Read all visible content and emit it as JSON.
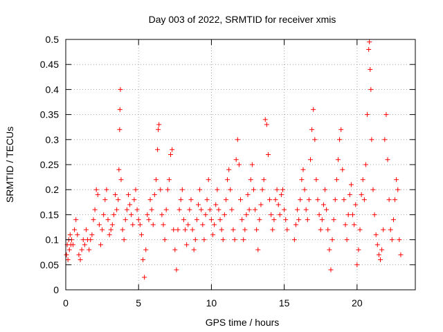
{
  "chart_data": {
    "type": "scatter",
    "title": "Day 003 of 2022, SRMTID for receiver xmis",
    "xlabel": "GPS time / hours",
    "ylabel": "SRMTID / TECUs",
    "xlim": [
      0,
      24
    ],
    "ylim": [
      0,
      0.5
    ],
    "x_ticks": [
      0,
      5,
      10,
      15,
      20
    ],
    "x_tick_labels": [
      "0",
      "5",
      "10",
      "15",
      "20"
    ],
    "y_ticks": [
      0,
      0.05,
      0.1,
      0.15,
      0.2,
      0.25,
      0.3,
      0.35,
      0.4,
      0.45,
      0.5
    ],
    "y_tick_labels": [
      "0",
      "0.05",
      "0.1",
      "0.15",
      "0.2",
      "0.25",
      "0.3",
      "0.35",
      "0.4",
      "0.45",
      "0.5"
    ],
    "grid": true,
    "marker": "+",
    "color": "#ff0000",
    "series": [
      {
        "name": "SRMTID",
        "points": [
          [
            0.05,
            0.07
          ],
          [
            0.1,
            0.09
          ],
          [
            0.15,
            0.06
          ],
          [
            0.2,
            0.1
          ],
          [
            0.25,
            0.08
          ],
          [
            0.3,
            0.11
          ],
          [
            0.35,
            0.09
          ],
          [
            0.4,
            0.1
          ],
          [
            0.5,
            0.09
          ],
          [
            0.6,
            0.12
          ],
          [
            0.7,
            0.14
          ],
          [
            0.8,
            0.11
          ],
          [
            0.9,
            0.07
          ],
          [
            1.0,
            0.06
          ],
          [
            1.1,
            0.08
          ],
          [
            1.2,
            0.1
          ],
          [
            1.3,
            0.09
          ],
          [
            1.4,
            0.12
          ],
          [
            1.5,
            0.1
          ],
          [
            1.6,
            0.08
          ],
          [
            1.7,
            0.1
          ],
          [
            1.8,
            0.11
          ],
          [
            1.9,
            0.14
          ],
          [
            2.0,
            0.16
          ],
          [
            2.1,
            0.2
          ],
          [
            2.2,
            0.19
          ],
          [
            2.3,
            0.13
          ],
          [
            2.4,
            0.09
          ],
          [
            2.5,
            0.12
          ],
          [
            2.6,
            0.15
          ],
          [
            2.7,
            0.18
          ],
          [
            2.8,
            0.2
          ],
          [
            2.9,
            0.14
          ],
          [
            3.0,
            0.11
          ],
          [
            3.1,
            0.12
          ],
          [
            3.2,
            0.13
          ],
          [
            3.3,
            0.15
          ],
          [
            3.4,
            0.19
          ],
          [
            3.5,
            0.16
          ],
          [
            3.6,
            0.18
          ],
          [
            3.65,
            0.24
          ],
          [
            3.7,
            0.32
          ],
          [
            3.72,
            0.36
          ],
          [
            3.75,
            0.4
          ],
          [
            3.8,
            0.22
          ],
          [
            3.9,
            0.12
          ],
          [
            4.0,
            0.1
          ],
          [
            4.1,
            0.14
          ],
          [
            4.2,
            0.16
          ],
          [
            4.3,
            0.19
          ],
          [
            4.4,
            0.17
          ],
          [
            4.5,
            0.15
          ],
          [
            4.6,
            0.13
          ],
          [
            4.7,
            0.18
          ],
          [
            4.8,
            0.2
          ],
          [
            4.9,
            0.16
          ],
          [
            5.0,
            0.14
          ],
          [
            5.1,
            0.13
          ],
          [
            5.2,
            0.11
          ],
          [
            5.3,
            0.06
          ],
          [
            5.4,
            0.025
          ],
          [
            5.5,
            0.08
          ],
          [
            5.6,
            0.15
          ],
          [
            5.7,
            0.14
          ],
          [
            5.8,
            0.18
          ],
          [
            5.9,
            0.16
          ],
          [
            6.0,
            0.13
          ],
          [
            6.1,
            0.19
          ],
          [
            6.2,
            0.22
          ],
          [
            6.3,
            0.28
          ],
          [
            6.35,
            0.32
          ],
          [
            6.4,
            0.33
          ],
          [
            6.5,
            0.2
          ],
          [
            6.6,
            0.15
          ],
          [
            6.7,
            0.13
          ],
          [
            6.8,
            0.1
          ],
          [
            6.9,
            0.16
          ],
          [
            7.0,
            0.2
          ],
          [
            7.1,
            0.22
          ],
          [
            7.2,
            0.27
          ],
          [
            7.3,
            0.28
          ],
          [
            7.4,
            0.12
          ],
          [
            7.5,
            0.08
          ],
          [
            7.6,
            0.04
          ],
          [
            7.7,
            0.12
          ],
          [
            7.8,
            0.16
          ],
          [
            7.9,
            0.18
          ],
          [
            8.0,
            0.2
          ],
          [
            8.1,
            0.14
          ],
          [
            8.2,
            0.12
          ],
          [
            8.3,
            0.09
          ],
          [
            8.4,
            0.13
          ],
          [
            8.5,
            0.16
          ],
          [
            8.6,
            0.18
          ],
          [
            8.7,
            0.12
          ],
          [
            8.8,
            0.08
          ],
          [
            8.9,
            0.1
          ],
          [
            9.0,
            0.14
          ],
          [
            9.1,
            0.17
          ],
          [
            9.2,
            0.2
          ],
          [
            9.3,
            0.16
          ],
          [
            9.4,
            0.13
          ],
          [
            9.5,
            0.1
          ],
          [
            9.6,
            0.15
          ],
          [
            9.7,
            0.18
          ],
          [
            9.8,
            0.22
          ],
          [
            9.9,
            0.16
          ],
          [
            10.0,
            0.14
          ],
          [
            10.1,
            0.11
          ],
          [
            10.2,
            0.13
          ],
          [
            10.3,
            0.17
          ],
          [
            10.4,
            0.2
          ],
          [
            10.5,
            0.16
          ],
          [
            10.6,
            0.14
          ],
          [
            10.7,
            0.12
          ],
          [
            10.8,
            0.1
          ],
          [
            10.9,
            0.15
          ],
          [
            11.0,
            0.18
          ],
          [
            11.1,
            0.22
          ],
          [
            11.2,
            0.24
          ],
          [
            11.3,
            0.2
          ],
          [
            11.4,
            0.16
          ],
          [
            11.5,
            0.12
          ],
          [
            11.6,
            0.1
          ],
          [
            11.7,
            0.26
          ],
          [
            11.8,
            0.3
          ],
          [
            11.9,
            0.25
          ],
          [
            12.0,
            0.18
          ],
          [
            12.1,
            0.14
          ],
          [
            12.2,
            0.1
          ],
          [
            12.3,
            0.12
          ],
          [
            12.4,
            0.15
          ],
          [
            12.5,
            0.19
          ],
          [
            12.6,
            0.16
          ],
          [
            12.7,
            0.22
          ],
          [
            12.8,
            0.25
          ],
          [
            12.9,
            0.2
          ],
          [
            13.0,
            0.16
          ],
          [
            13.1,
            0.12
          ],
          [
            13.2,
            0.08
          ],
          [
            13.3,
            0.14
          ],
          [
            13.4,
            0.17
          ],
          [
            13.5,
            0.2
          ],
          [
            13.6,
            0.22
          ],
          [
            13.7,
            0.34
          ],
          [
            13.8,
            0.33
          ],
          [
            13.9,
            0.27
          ],
          [
            14.0,
            0.18
          ],
          [
            14.1,
            0.15
          ],
          [
            14.2,
            0.12
          ],
          [
            14.3,
            0.14
          ],
          [
            14.4,
            0.18
          ],
          [
            14.5,
            0.2
          ],
          [
            14.6,
            0.17
          ],
          [
            14.7,
            0.15
          ],
          [
            14.8,
            0.19
          ],
          [
            14.9,
            0.2
          ],
          [
            15.0,
            0.16
          ],
          [
            15.1,
            0.14
          ],
          [
            15.2,
            0.12
          ],
          [
            15.7,
            0.1
          ],
          [
            15.8,
            0.13
          ],
          [
            15.9,
            0.16
          ],
          [
            16.0,
            0.14
          ],
          [
            16.1,
            0.18
          ],
          [
            16.2,
            0.22
          ],
          [
            16.3,
            0.24
          ],
          [
            16.4,
            0.2
          ],
          [
            16.5,
            0.16
          ],
          [
            16.6,
            0.14
          ],
          [
            16.7,
            0.18
          ],
          [
            16.8,
            0.26
          ],
          [
            16.9,
            0.32
          ],
          [
            17.0,
            0.36
          ],
          [
            17.1,
            0.3
          ],
          [
            17.2,
            0.22
          ],
          [
            17.3,
            0.18
          ],
          [
            17.4,
            0.15
          ],
          [
            17.5,
            0.12
          ],
          [
            17.6,
            0.14
          ],
          [
            17.7,
            0.17
          ],
          [
            17.8,
            0.2
          ],
          [
            17.9,
            0.16
          ],
          [
            18.0,
            0.12
          ],
          [
            18.1,
            0.08
          ],
          [
            18.2,
            0.04
          ],
          [
            18.3,
            0.1
          ],
          [
            18.4,
            0.14
          ],
          [
            18.5,
            0.18
          ],
          [
            18.6,
            0.22
          ],
          [
            18.7,
            0.26
          ],
          [
            18.8,
            0.3
          ],
          [
            18.9,
            0.32
          ],
          [
            19.0,
            0.24
          ],
          [
            19.1,
            0.18
          ],
          [
            19.2,
            0.13
          ],
          [
            19.3,
            0.1
          ],
          [
            19.4,
            0.15
          ],
          [
            19.5,
            0.19
          ],
          [
            19.6,
            0.21
          ],
          [
            19.7,
            0.15
          ],
          [
            19.8,
            0.13
          ],
          [
            19.9,
            0.17
          ],
          [
            20.0,
            0.05
          ],
          [
            20.1,
            0.08
          ],
          [
            20.2,
            0.12
          ],
          [
            20.3,
            0.19
          ],
          [
            20.4,
            0.22
          ],
          [
            20.5,
            0.18
          ],
          [
            20.6,
            0.25
          ],
          [
            20.7,
            0.35
          ],
          [
            20.8,
            0.48
          ],
          [
            20.85,
            0.495
          ],
          [
            20.9,
            0.44
          ],
          [
            20.95,
            0.4
          ],
          [
            21.0,
            0.3
          ],
          [
            21.1,
            0.2
          ],
          [
            21.2,
            0.15
          ],
          [
            21.3,
            0.11
          ],
          [
            21.4,
            0.09
          ],
          [
            21.5,
            0.07
          ],
          [
            21.6,
            0.06
          ],
          [
            21.7,
            0.08
          ],
          [
            21.8,
            0.12
          ],
          [
            21.9,
            0.3
          ],
          [
            22.0,
            0.35
          ],
          [
            22.1,
            0.26
          ],
          [
            22.2,
            0.18
          ],
          [
            22.3,
            0.12
          ],
          [
            22.4,
            0.1
          ],
          [
            22.5,
            0.14
          ],
          [
            22.6,
            0.18
          ],
          [
            22.7,
            0.22
          ],
          [
            22.8,
            0.2
          ],
          [
            22.9,
            0.1
          ],
          [
            23.0,
            0.07
          ]
        ]
      }
    ]
  }
}
